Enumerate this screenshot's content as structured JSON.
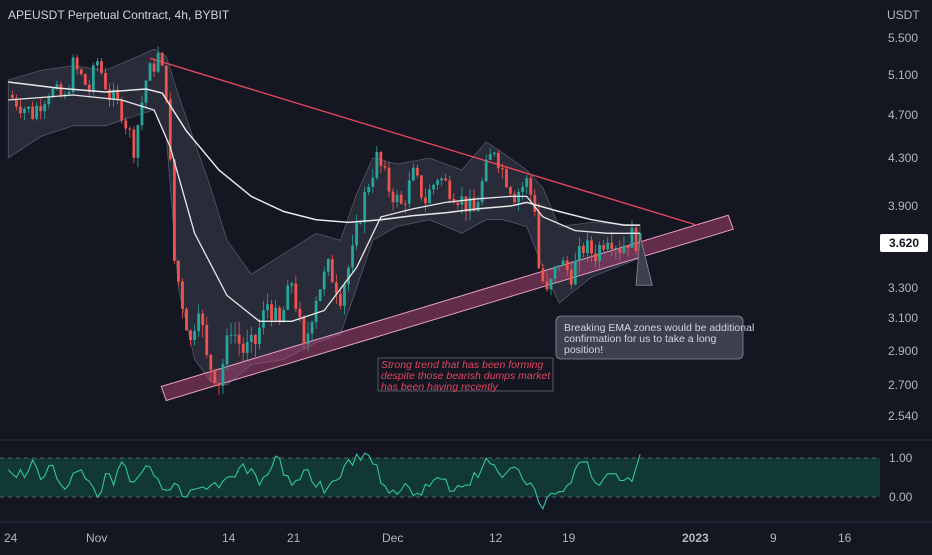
{
  "chart_data": {
    "type": "candlestick",
    "title": "APEUSDT Perpetual Contract, 4h, BYBIT",
    "currency_label": "USDT",
    "current_price": 3.62,
    "current_price_label": "3.620",
    "colors": {
      "background": "#141722",
      "up": "#26a69a",
      "down": "#ef5350",
      "resistance": "#e0455f",
      "support_band": "#c0467f",
      "ema": "#e8e8ea",
      "bollinger_fill": "#3b3d4a",
      "rsi": "#2fc4a6",
      "rsi_band": "#123833"
    },
    "price_axis": {
      "ticks": [
        5.5,
        5.1,
        4.7,
        4.3,
        3.9,
        3.3,
        3.1,
        2.9,
        2.7,
        2.54
      ],
      "tick_labels": [
        "5.500",
        "5.100",
        "4.700",
        "4.300",
        "3.900",
        "3.300",
        "3.100",
        "2.900",
        "2.700",
        "2.540"
      ]
    },
    "time_axis": {
      "tick_labels": [
        "24",
        "Nov",
        "14",
        "21",
        "Dec",
        "12",
        "19",
        "2023",
        "9",
        "16"
      ]
    },
    "ohlc_path": [
      [
        0,
        4.9
      ],
      [
        3,
        4.72
      ],
      [
        5,
        4.95
      ],
      [
        7,
        4.85
      ],
      [
        8,
        5.2
      ],
      [
        10,
        4.95
      ],
      [
        11,
        5.25
      ],
      [
        12.5,
        4.9
      ],
      [
        14,
        4.75
      ],
      [
        15.5,
        4.4
      ],
      [
        17,
        5.05
      ],
      [
        18.5,
        5.3
      ],
      [
        19.5,
        4.95
      ],
      [
        20.5,
        3.5
      ],
      [
        21.5,
        3.2
      ],
      [
        22.5,
        2.95
      ],
      [
        23.5,
        3.2
      ],
      [
        24.5,
        2.85
      ],
      [
        26,
        2.72
      ],
      [
        27.5,
        3.05
      ],
      [
        29,
        2.9
      ],
      [
        30.5,
        2.95
      ],
      [
        32,
        3.2
      ],
      [
        33.5,
        3.05
      ],
      [
        35,
        3.35
      ],
      [
        36.5,
        2.9
      ],
      [
        38,
        3.25
      ],
      [
        39.5,
        3.45
      ],
      [
        41,
        3.25
      ],
      [
        42.5,
        3.55
      ],
      [
        43.5,
        3.85
      ],
      [
        44.5,
        4.1
      ],
      [
        45.5,
        4.3
      ],
      [
        47,
        4.05
      ],
      [
        48.5,
        3.9
      ],
      [
        50,
        4.15
      ],
      [
        51.5,
        3.95
      ],
      [
        53,
        4.15
      ],
      [
        54.5,
        4.05
      ],
      [
        56,
        3.95
      ],
      [
        57.5,
        3.85
      ],
      [
        59,
        4.2
      ],
      [
        60,
        4.4
      ],
      [
        61,
        4.2
      ],
      [
        62.5,
        4.0
      ],
      [
        64,
        4.1
      ],
      [
        65,
        3.9
      ],
      [
        65.5,
        3.45
      ],
      [
        66.5,
        3.25
      ],
      [
        68,
        3.5
      ],
      [
        69.5,
        3.4
      ],
      [
        71,
        3.6
      ],
      [
        72.5,
        3.55
      ],
      [
        74,
        3.7
      ],
      [
        75.5,
        3.6
      ],
      [
        77,
        3.68
      ],
      [
        78,
        3.62
      ]
    ],
    "ema_fast_path": [
      [
        0,
        4.85
      ],
      [
        8,
        4.9
      ],
      [
        14,
        4.85
      ],
      [
        18,
        4.75
      ],
      [
        20,
        4.4
      ],
      [
        23,
        3.7
      ],
      [
        27,
        3.25
      ],
      [
        31,
        3.08
      ],
      [
        35,
        3.08
      ],
      [
        39,
        3.15
      ],
      [
        43,
        3.45
      ],
      [
        46,
        3.82
      ],
      [
        50,
        3.88
      ],
      [
        54,
        3.93
      ],
      [
        58,
        3.96
      ],
      [
        62,
        3.98
      ],
      [
        64,
        3.98
      ],
      [
        66,
        3.82
      ],
      [
        70,
        3.72
      ],
      [
        74,
        3.7
      ],
      [
        78,
        3.7
      ]
    ],
    "ema_slow_path": [
      [
        0,
        5.03
      ],
      [
        6,
        4.97
      ],
      [
        12,
        4.93
      ],
      [
        17,
        4.96
      ],
      [
        19,
        4.92
      ],
      [
        22,
        4.55
      ],
      [
        26,
        4.2
      ],
      [
        30,
        3.98
      ],
      [
        34,
        3.86
      ],
      [
        38,
        3.8
      ],
      [
        42,
        3.78
      ],
      [
        46,
        3.8
      ],
      [
        50,
        3.83
      ],
      [
        54,
        3.85
      ],
      [
        58,
        3.88
      ],
      [
        62,
        3.9
      ],
      [
        64,
        3.93
      ],
      [
        68,
        3.86
      ],
      [
        72,
        3.8
      ],
      [
        76,
        3.76
      ],
      [
        78,
        3.76
      ]
    ],
    "bb_upper_path": [
      [
        0,
        5.05
      ],
      [
        4,
        5.15
      ],
      [
        8,
        5.2
      ],
      [
        12,
        5.15
      ],
      [
        16,
        5.3
      ],
      [
        18,
        5.38
      ],
      [
        19.5,
        5.3
      ],
      [
        21,
        4.9
      ],
      [
        23,
        4.45
      ],
      [
        25,
        4.05
      ],
      [
        27,
        3.65
      ],
      [
        30,
        3.4
      ],
      [
        34,
        3.55
      ],
      [
        38,
        3.7
      ],
      [
        41,
        3.65
      ],
      [
        43,
        4.0
      ],
      [
        45,
        4.3
      ],
      [
        48,
        4.25
      ],
      [
        52,
        4.3
      ],
      [
        56,
        4.2
      ],
      [
        59,
        4.45
      ],
      [
        61,
        4.35
      ],
      [
        64,
        4.2
      ],
      [
        66,
        4.05
      ],
      [
        68,
        3.75
      ],
      [
        72,
        3.78
      ],
      [
        78,
        3.76
      ]
    ],
    "bb_lower_path": [
      [
        0,
        4.3
      ],
      [
        4,
        4.5
      ],
      [
        8,
        4.6
      ],
      [
        12,
        4.6
      ],
      [
        16,
        4.7
      ],
      [
        18,
        4.75
      ],
      [
        19.5,
        4.5
      ],
      [
        21,
        3.3
      ],
      [
        23,
        2.85
      ],
      [
        25,
        2.72
      ],
      [
        27,
        2.7
      ],
      [
        30,
        2.82
      ],
      [
        34,
        2.85
      ],
      [
        38,
        2.95
      ],
      [
        41,
        3.0
      ],
      [
        43,
        3.3
      ],
      [
        45,
        3.65
      ],
      [
        48,
        3.75
      ],
      [
        52,
        3.8
      ],
      [
        56,
        3.7
      ],
      [
        59,
        3.8
      ],
      [
        61,
        3.8
      ],
      [
        64,
        3.75
      ],
      [
        66,
        3.45
      ],
      [
        68,
        3.2
      ],
      [
        72,
        3.38
      ],
      [
        78,
        3.52
      ]
    ],
    "resistance_line": {
      "from": [
        17.5,
        5.28
      ],
      "to": [
        85,
        3.76
      ]
    },
    "support_band": {
      "from": [
        19.5,
        2.62
      ],
      "to": [
        89.5,
        3.73
      ],
      "to_hi": [
        88.5,
        3.83
      ]
    },
    "target_wedge": {
      "from": [
        78,
        3.68
      ],
      "mid": [
        77.5,
        3.32
      ],
      "to": [
        79.5,
        3.32
      ]
    },
    "annotations": [
      {
        "text_lines": [
          "Strong trend that has been forming",
          "despite those bearish dumps market",
          "has been having recently"
        ],
        "color": "#e0455f"
      },
      {
        "text_lines": [
          "Breaking EMA zones would be additional",
          "confirmation for us to take a long",
          "position!"
        ],
        "color": "#d1d4dc"
      }
    ],
    "rsi": {
      "levels": [
        1.0,
        0.0
      ],
      "level_labels": [
        "1.00",
        "0.00"
      ],
      "path": [
        [
          0,
          0.7
        ],
        [
          2,
          0.5
        ],
        [
          3,
          0.95
        ],
        [
          4,
          0.45
        ],
        [
          5,
          0.8
        ],
        [
          7,
          0.2
        ],
        [
          9,
          0.7
        ],
        [
          11,
          0.0
        ],
        [
          12,
          0.6
        ],
        [
          13,
          0.3
        ],
        [
          14,
          0.9
        ],
        [
          15,
          0.4
        ],
        [
          17,
          0.8
        ],
        [
          19,
          0.2
        ],
        [
          21,
          0.3
        ],
        [
          22,
          0.0
        ],
        [
          23,
          0.2
        ],
        [
          25,
          0.3
        ],
        [
          27,
          0.5
        ],
        [
          29,
          0.85
        ],
        [
          31,
          0.3
        ],
        [
          33,
          1.05
        ],
        [
          35,
          0.3
        ],
        [
          37,
          0.7
        ],
        [
          39,
          0.1
        ],
        [
          41,
          0.5
        ],
        [
          43,
          1.1
        ],
        [
          45,
          0.85
        ],
        [
          47,
          0.1
        ],
        [
          49,
          0.35
        ],
        [
          51,
          0.05
        ],
        [
          53,
          0.5
        ],
        [
          55,
          0.15
        ],
        [
          57,
          0.3
        ],
        [
          59,
          1.0
        ],
        [
          61,
          0.5
        ],
        [
          63,
          0.7
        ],
        [
          65,
          0.2
        ],
        [
          66,
          -0.3
        ],
        [
          67,
          0.1
        ],
        [
          69,
          0.3
        ],
        [
          71,
          0.9
        ],
        [
          73,
          0.3
        ],
        [
          75,
          0.6
        ],
        [
          77,
          0.4
        ],
        [
          78,
          1.1
        ]
      ]
    }
  }
}
